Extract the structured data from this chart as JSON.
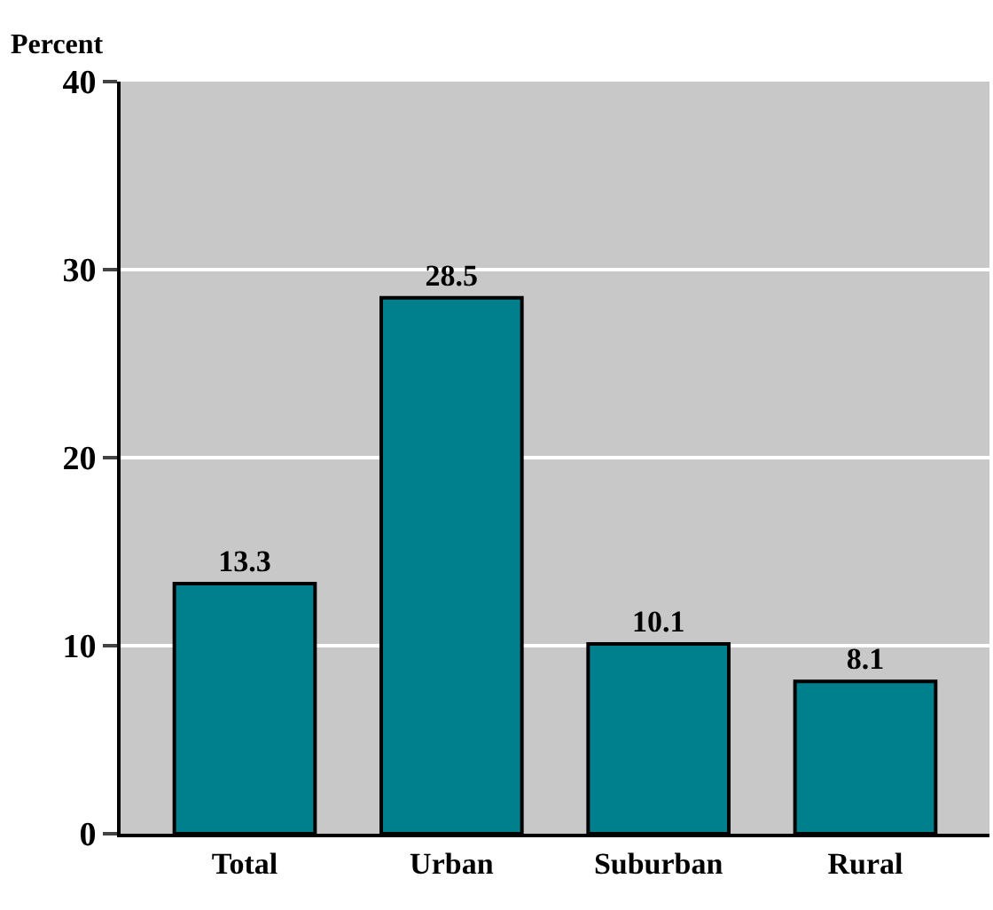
{
  "chart_data": {
    "type": "bar",
    "ylabel": "Percent",
    "categories": [
      "Total",
      "Urban",
      "Suburban",
      "Rural"
    ],
    "values": [
      13.3,
      28.5,
      10.1,
      8.1
    ],
    "color": "#007f8c",
    "ylim": [
      0,
      40
    ],
    "yticks": [
      0,
      10,
      20,
      30,
      40
    ],
    "grid": "y",
    "data_labels": true
  }
}
